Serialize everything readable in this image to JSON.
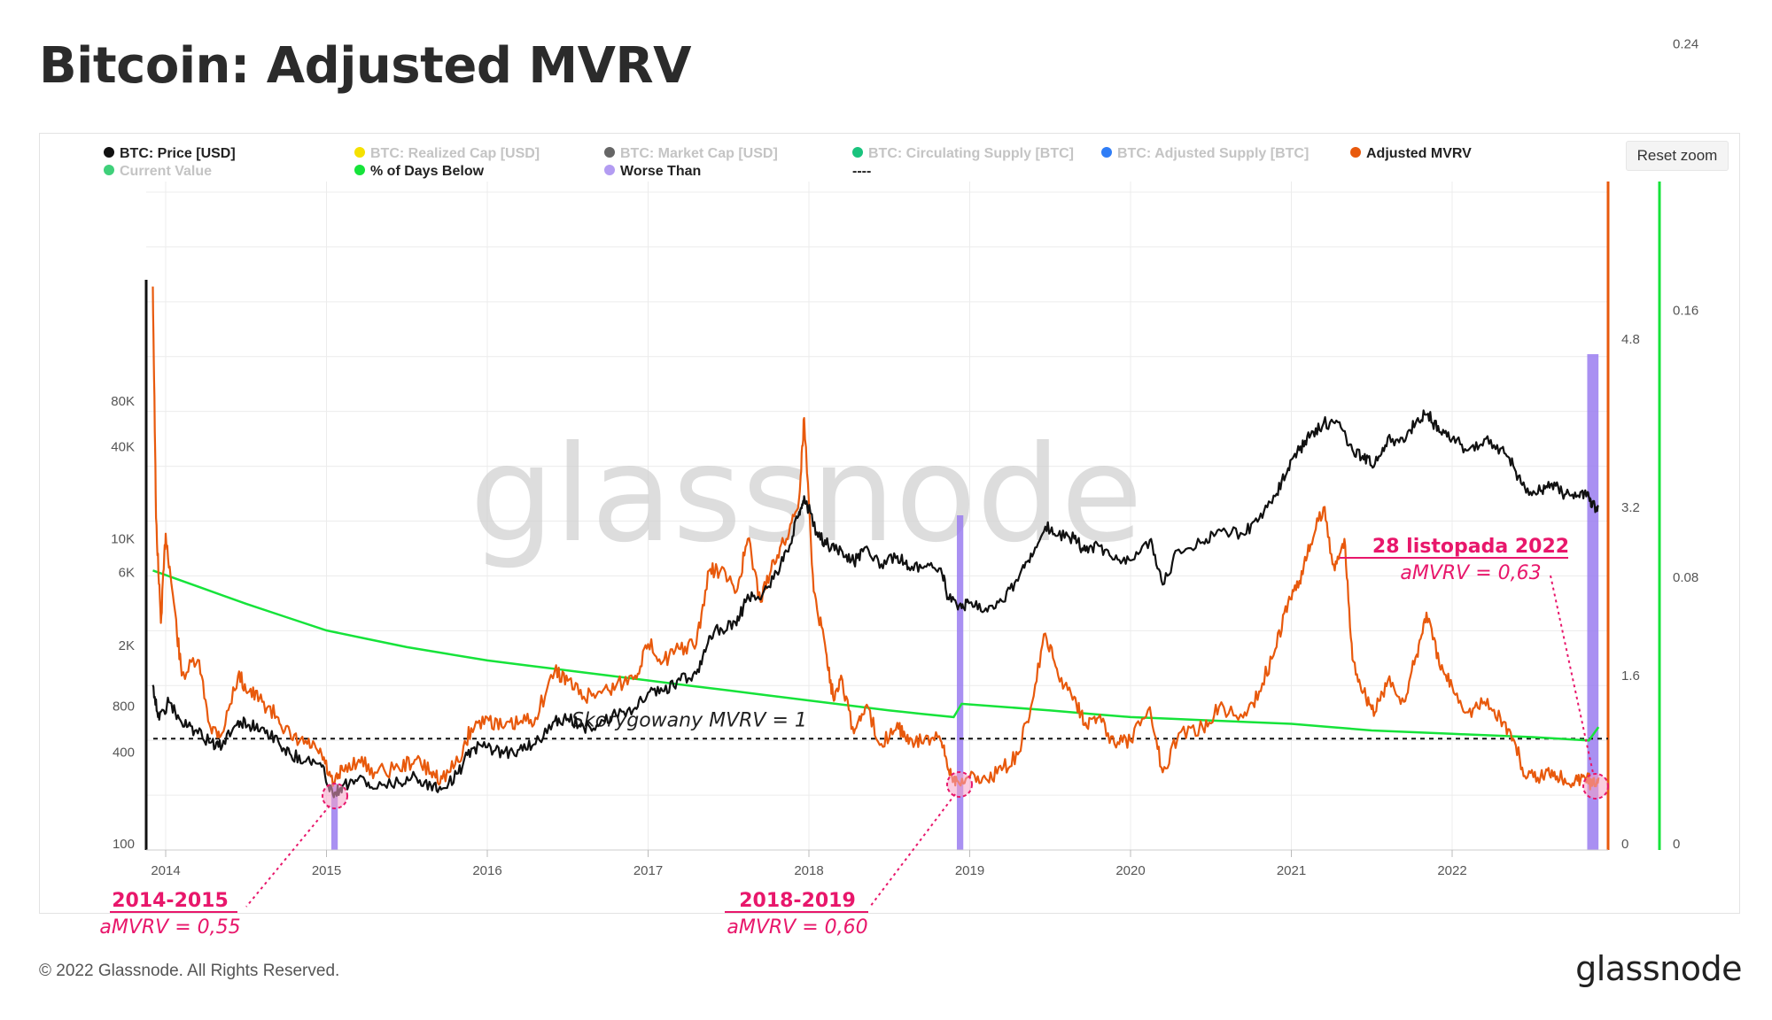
{
  "title": "Bitcoin: Adjusted MVRV",
  "reset_zoom_label": "Reset zoom",
  "watermark": "glassnode",
  "footer": {
    "copyright": "© 2022 Glassnode. All Rights Reserved.",
    "logo": "glassnode"
  },
  "chart_data": {
    "type": "line",
    "legend": [
      {
        "label": "BTC: Price [USD]",
        "color": "#111111",
        "active": true
      },
      {
        "label": "BTC: Realized Cap [USD]",
        "color": "#f5e100",
        "active": false
      },
      {
        "label": "BTC: Market Cap [USD]",
        "color": "#666666",
        "active": false
      },
      {
        "label": "BTC: Circulating Supply [BTC]",
        "color": "#19c37d",
        "active": false
      },
      {
        "label": "BTC: Adjusted Supply [BTC]",
        "color": "#2f7df6",
        "active": false
      },
      {
        "label": "Adjusted MVRV",
        "color": "#e8590c",
        "active": true
      },
      {
        "label": "Current Value",
        "color": "#3fd07a",
        "active": false
      },
      {
        "label": "% of Days Below",
        "color": "#16e33a",
        "active": true
      },
      {
        "label": "Worse Than",
        "color": "#b39cf2",
        "active": true
      },
      {
        "label": "----",
        "color": "",
        "active": true
      }
    ],
    "x_ticks": [
      "2014",
      "2015",
      "2016",
      "2017",
      "2018",
      "2019",
      "2020",
      "2021",
      "2022"
    ],
    "y_left_ticks": [
      {
        "label": "80K",
        "value": 80000
      },
      {
        "label": "40K",
        "value": 40000
      },
      {
        "label": "10K",
        "value": 10000
      },
      {
        "label": "6K",
        "value": 6000
      },
      {
        "label": "2K",
        "value": 2000
      },
      {
        "label": "800",
        "value": 800
      },
      {
        "label": "400",
        "value": 400
      },
      {
        "label": "100",
        "value": 100
      }
    ],
    "y_left_scale": "log",
    "y_right1_ticks": [
      "4.8",
      "3.2",
      "1.6",
      "0"
    ],
    "y_right2_ticks": [
      "0.24",
      "0.16",
      "0.08",
      "0"
    ],
    "grid": true,
    "price_series": {
      "name": "BTC: Price [USD]",
      "points": [
        [
          2013.92,
          1100
        ],
        [
          2013.96,
          650
        ],
        [
          2014.02,
          850
        ],
        [
          2014.1,
          620
        ],
        [
          2014.18,
          550
        ],
        [
          2014.28,
          460
        ],
        [
          2014.35,
          430
        ],
        [
          2014.45,
          640
        ],
        [
          2014.52,
          600
        ],
        [
          2014.6,
          580
        ],
        [
          2014.7,
          470
        ],
        [
          2014.78,
          380
        ],
        [
          2014.88,
          360
        ],
        [
          2014.97,
          320
        ],
        [
          2015.04,
          210
        ],
        [
          2015.1,
          240
        ],
        [
          2015.2,
          270
        ],
        [
          2015.3,
          230
        ],
        [
          2015.45,
          250
        ],
        [
          2015.55,
          280
        ],
        [
          2015.65,
          240
        ],
        [
          2015.72,
          230
        ],
        [
          2015.82,
          290
        ],
        [
          2015.9,
          420
        ],
        [
          2016.0,
          430
        ],
        [
          2016.1,
          390
        ],
        [
          2016.2,
          415
        ],
        [
          2016.3,
          450
        ],
        [
          2016.42,
          640
        ],
        [
          2016.5,
          660
        ],
        [
          2016.6,
          580
        ],
        [
          2016.7,
          610
        ],
        [
          2016.8,
          700
        ],
        [
          2016.92,
          780
        ],
        [
          2017.0,
          980
        ],
        [
          2017.1,
          1000
        ],
        [
          2017.2,
          1180
        ],
        [
          2017.3,
          1300
        ],
        [
          2017.38,
          2300
        ],
        [
          2017.45,
          2600
        ],
        [
          2017.55,
          2700
        ],
        [
          2017.62,
          4300
        ],
        [
          2017.7,
          4000
        ],
        [
          2017.8,
          6000
        ],
        [
          2017.88,
          9000
        ],
        [
          2017.94,
          15000
        ],
        [
          2017.97,
          19000
        ],
        [
          2018.05,
          11000
        ],
        [
          2018.12,
          9000
        ],
        [
          2018.2,
          8500
        ],
        [
          2018.28,
          7000
        ],
        [
          2018.35,
          8800
        ],
        [
          2018.45,
          6800
        ],
        [
          2018.55,
          7700
        ],
        [
          2018.62,
          6500
        ],
        [
          2018.72,
          6600
        ],
        [
          2018.82,
          6400
        ],
        [
          2018.87,
          4000
        ],
        [
          2018.95,
          3500
        ],
        [
          2019.0,
          3800
        ],
        [
          2019.1,
          3500
        ],
        [
          2019.2,
          3900
        ],
        [
          2019.3,
          5300
        ],
        [
          2019.38,
          8000
        ],
        [
          2019.47,
          12000
        ],
        [
          2019.55,
          10500
        ],
        [
          2019.65,
          10000
        ],
        [
          2019.72,
          8300
        ],
        [
          2019.8,
          9000
        ],
        [
          2019.9,
          7300
        ],
        [
          2020.0,
          7200
        ],
        [
          2020.12,
          9800
        ],
        [
          2020.2,
          5000
        ],
        [
          2020.3,
          8500
        ],
        [
          2020.45,
          9500
        ],
        [
          2020.55,
          11500
        ],
        [
          2020.7,
          10700
        ],
        [
          2020.8,
          13500
        ],
        [
          2020.9,
          19000
        ],
        [
          2020.98,
          29000
        ],
        [
          2021.05,
          38000
        ],
        [
          2021.12,
          48000
        ],
        [
          2021.2,
          57000
        ],
        [
          2021.3,
          58000
        ],
        [
          2021.38,
          38000
        ],
        [
          2021.45,
          33000
        ],
        [
          2021.52,
          31000
        ],
        [
          2021.6,
          46000
        ],
        [
          2021.7,
          43000
        ],
        [
          2021.78,
          60000
        ],
        [
          2021.85,
          66000
        ],
        [
          2021.92,
          50000
        ],
        [
          2022.0,
          45000
        ],
        [
          2022.1,
          38000
        ],
        [
          2022.2,
          45000
        ],
        [
          2022.3,
          39000
        ],
        [
          2022.38,
          30000
        ],
        [
          2022.46,
          20000
        ],
        [
          2022.55,
          20500
        ],
        [
          2022.62,
          23000
        ],
        [
          2022.7,
          19500
        ],
        [
          2022.78,
          19200
        ],
        [
          2022.84,
          20000
        ],
        [
          2022.87,
          16200
        ],
        [
          2022.91,
          16500
        ]
      ]
    },
    "mvrv_series": {
      "name": "Adjusted MVRV",
      "points": [
        [
          2013.92,
          5.3
        ],
        [
          2013.94,
          3.1
        ],
        [
          2013.97,
          2.1
        ],
        [
          2014.0,
          2.95
        ],
        [
          2014.05,
          2.3
        ],
        [
          2014.1,
          1.6
        ],
        [
          2014.2,
          1.75
        ],
        [
          2014.28,
          1.1
        ],
        [
          2014.35,
          1.05
        ],
        [
          2014.45,
          1.6
        ],
        [
          2014.52,
          1.45
        ],
        [
          2014.6,
          1.35
        ],
        [
          2014.7,
          1.2
        ],
        [
          2014.78,
          1.0
        ],
        [
          2014.88,
          0.95
        ],
        [
          2014.97,
          0.85
        ],
        [
          2015.04,
          0.55
        ],
        [
          2015.1,
          0.7
        ],
        [
          2015.2,
          0.8
        ],
        [
          2015.3,
          0.68
        ],
        [
          2015.45,
          0.72
        ],
        [
          2015.55,
          0.8
        ],
        [
          2015.65,
          0.68
        ],
        [
          2015.72,
          0.62
        ],
        [
          2015.82,
          0.78
        ],
        [
          2015.9,
          1.1
        ],
        [
          2016.0,
          1.2
        ],
        [
          2016.1,
          1.1
        ],
        [
          2016.2,
          1.15
        ],
        [
          2016.3,
          1.2
        ],
        [
          2016.42,
          1.65
        ],
        [
          2016.5,
          1.55
        ],
        [
          2016.6,
          1.4
        ],
        [
          2016.7,
          1.45
        ],
        [
          2016.8,
          1.5
        ],
        [
          2016.92,
          1.6
        ],
        [
          2017.0,
          1.9
        ],
        [
          2017.1,
          1.75
        ],
        [
          2017.2,
          1.85
        ],
        [
          2017.3,
          1.9
        ],
        [
          2017.38,
          2.6
        ],
        [
          2017.45,
          2.6
        ],
        [
          2017.55,
          2.4
        ],
        [
          2017.62,
          2.9
        ],
        [
          2017.7,
          2.3
        ],
        [
          2017.78,
          2.7
        ],
        [
          2017.86,
          2.9
        ],
        [
          2017.94,
          3.3
        ],
        [
          2017.97,
          4.05
        ],
        [
          2018.03,
          2.4
        ],
        [
          2018.1,
          1.9
        ],
        [
          2018.15,
          1.4
        ],
        [
          2018.2,
          1.6
        ],
        [
          2018.28,
          1.05
        ],
        [
          2018.35,
          1.3
        ],
        [
          2018.45,
          0.95
        ],
        [
          2018.55,
          1.15
        ],
        [
          2018.62,
          0.95
        ],
        [
          2018.72,
          1.0
        ],
        [
          2018.82,
          0.98
        ],
        [
          2018.87,
          0.7
        ],
        [
          2018.92,
          0.6
        ],
        [
          2019.0,
          0.63
        ],
        [
          2019.1,
          0.62
        ],
        [
          2019.2,
          0.7
        ],
        [
          2019.3,
          0.85
        ],
        [
          2019.38,
          1.3
        ],
        [
          2019.47,
          2.0
        ],
        [
          2019.55,
          1.6
        ],
        [
          2019.65,
          1.4
        ],
        [
          2019.72,
          1.15
        ],
        [
          2019.8,
          1.2
        ],
        [
          2019.9,
          0.95
        ],
        [
          2020.0,
          0.98
        ],
        [
          2020.12,
          1.3
        ],
        [
          2020.2,
          0.68
        ],
        [
          2020.3,
          1.05
        ],
        [
          2020.45,
          1.1
        ],
        [
          2020.55,
          1.3
        ],
        [
          2020.7,
          1.2
        ],
        [
          2020.8,
          1.45
        ],
        [
          2020.9,
          1.85
        ],
        [
          2020.98,
          2.3
        ],
        [
          2021.05,
          2.5
        ],
        [
          2021.12,
          2.85
        ],
        [
          2021.2,
          3.2
        ],
        [
          2021.27,
          2.6
        ],
        [
          2021.33,
          2.9
        ],
        [
          2021.38,
          1.75
        ],
        [
          2021.45,
          1.45
        ],
        [
          2021.52,
          1.25
        ],
        [
          2021.6,
          1.55
        ],
        [
          2021.7,
          1.35
        ],
        [
          2021.78,
          1.8
        ],
        [
          2021.84,
          2.2
        ],
        [
          2021.92,
          1.7
        ],
        [
          2022.0,
          1.5
        ],
        [
          2022.1,
          1.25
        ],
        [
          2022.2,
          1.35
        ],
        [
          2022.3,
          1.2
        ],
        [
          2022.38,
          1.0
        ],
        [
          2022.46,
          0.62
        ],
        [
          2022.55,
          0.64
        ],
        [
          2022.62,
          0.7
        ],
        [
          2022.7,
          0.62
        ],
        [
          2022.78,
          0.6
        ],
        [
          2022.84,
          0.65
        ],
        [
          2022.87,
          0.55
        ],
        [
          2022.91,
          0.63
        ]
      ]
    },
    "days_below_series": {
      "name": "% of Days Below",
      "points": [
        [
          2013.92,
          0.082
        ],
        [
          2014.5,
          0.072
        ],
        [
          2015.0,
          0.064
        ],
        [
          2015.5,
          0.059
        ],
        [
          2016.0,
          0.055
        ],
        [
          2016.5,
          0.052
        ],
        [
          2017.0,
          0.049
        ],
        [
          2017.5,
          0.046
        ],
        [
          2018.0,
          0.043
        ],
        [
          2018.5,
          0.04
        ],
        [
          2018.9,
          0.038
        ],
        [
          2018.95,
          0.042
        ],
        [
          2019.5,
          0.04
        ],
        [
          2020.0,
          0.038
        ],
        [
          2020.5,
          0.037
        ],
        [
          2021.0,
          0.036
        ],
        [
          2021.5,
          0.034
        ],
        [
          2022.0,
          0.033
        ],
        [
          2022.5,
          0.032
        ],
        [
          2022.85,
          0.031
        ],
        [
          2022.91,
          0.035
        ]
      ]
    },
    "worse_than_bands": [
      [
        2015.03,
        2015.07
      ],
      [
        2018.92,
        2018.96
      ],
      [
        2022.84,
        2022.91
      ]
    ],
    "reference_line": {
      "label": "Skorygowany MVRV = 1",
      "value": 1
    },
    "annotations": [
      {
        "label": "2014-2015",
        "sub": "aMVRV = 0,55"
      },
      {
        "label": "2018-2019",
        "sub": "aMVRV = 0,60"
      },
      {
        "label": "28 listopada 2022",
        "sub": "aMVRV = 0,63"
      }
    ]
  }
}
